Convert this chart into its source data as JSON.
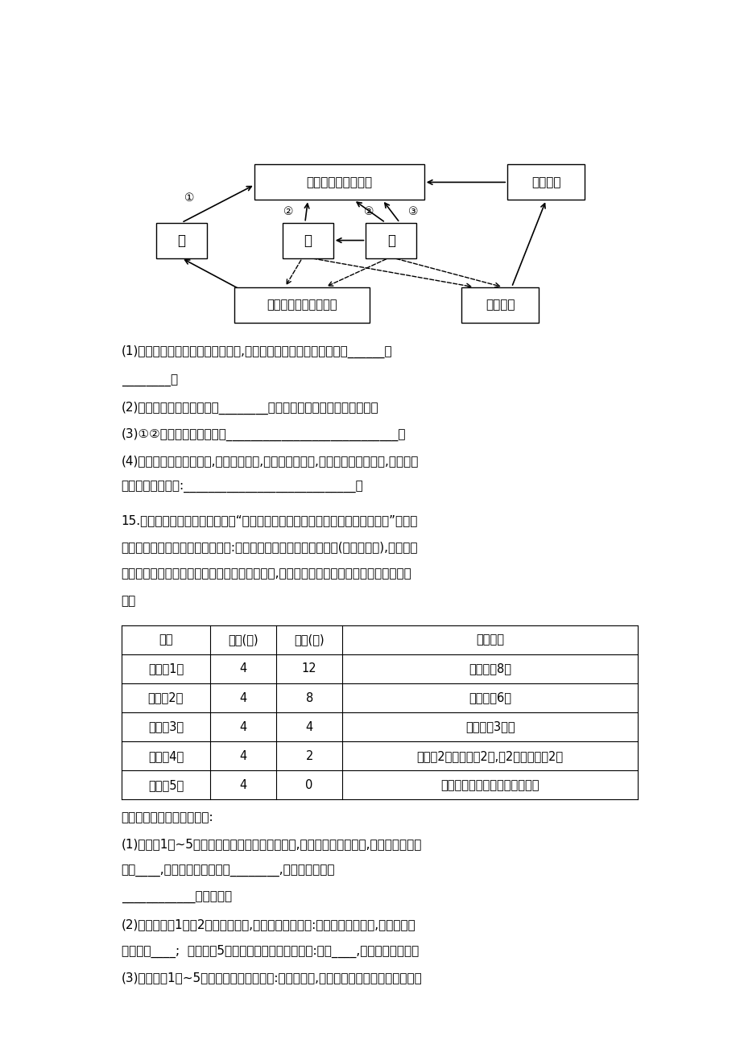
{
  "bg_color": "#ffffff",
  "atm_label": "大气中的二氧化碳库",
  "ind_label": "工业排放",
  "jia_label": "甲",
  "yi_label": "乙",
  "bing_label": "丙",
  "dead_label": "动植物的遗体和排泄物",
  "coal_label": "煎和石油",
  "q_lines": [
    "(1)从生态系统中物质循环的角度看,甲、乙、丙中不可缺少的成分是______和",
    "________。",
    "(2)生态系统的能量流动是从________通过光合作用固定太阳能开始的。",
    "(3)①②所进行的生理活动是____________________________。",
    "(4)人类过度使用煎和石油,造成温室效应,破坏了生态环境,因此应倡导低碳生活,请你举出",
    "两种低碳生活方式:____________________________。"
  ],
  "q15_lines": [
    "15.下表为某校生物兴趣小组研究“一个小型生态系统中动物数量和植物数量关系”的实验",
    "数据。实验中使用了以下实验用具:有盖玻璃瓶、小鱼、水草、沙子(含少量淤泥),经纱布过",
    "滤的池水。把这五个生态瓶均放在实验室窗台上,并使它们所处环境中的非生物因素基本相",
    "同。"
  ],
  "table_headers": [
    "编号",
    "小鱼(条)",
    "水草(棵)",
    "实验结果"
  ],
  "table_rows": [
    [
      "生态瓶1号",
      "4",
      "12",
      "小鱼存浧8天"
    ],
    [
      "生态瓶2号",
      "4",
      "8",
      "小鱼存浧6天"
    ],
    [
      "生态瓶3号",
      "4",
      "4",
      "小鱼存浧3天半"
    ],
    [
      "生态瓶4号",
      "4",
      "2",
      "小鱼第2天上午死亢2条,第2天下午死亢2条"
    ],
    [
      "生态瓶5号",
      "4",
      "0",
      "小鱼于当天下午和晚上相继死亡"
    ]
  ],
  "q_bottom_lines": [
    "请分析数据并回答下列问题:",
    "(1)生态瓶1号~5号均可以看做是一个小生态系统,在这些小生态系统中,属于消费者的生",
    "物是____,属于生产者的生物是________,池水、沙子中的",
    "____________是分解者。",
    "(2)比较生态瓶1号和2号的实验结果,可以得出以下结论:植物数量比较多时,动物存活的",
    "时间相对____;  由生态瓶5号实验结果可得出的结论是:没有____,动物就可能死亡。",
    "(3)由生态瓶1号~5号的实验结果可以看出:通常情况下,在一个生态系统中动物数量与植"
  ]
}
